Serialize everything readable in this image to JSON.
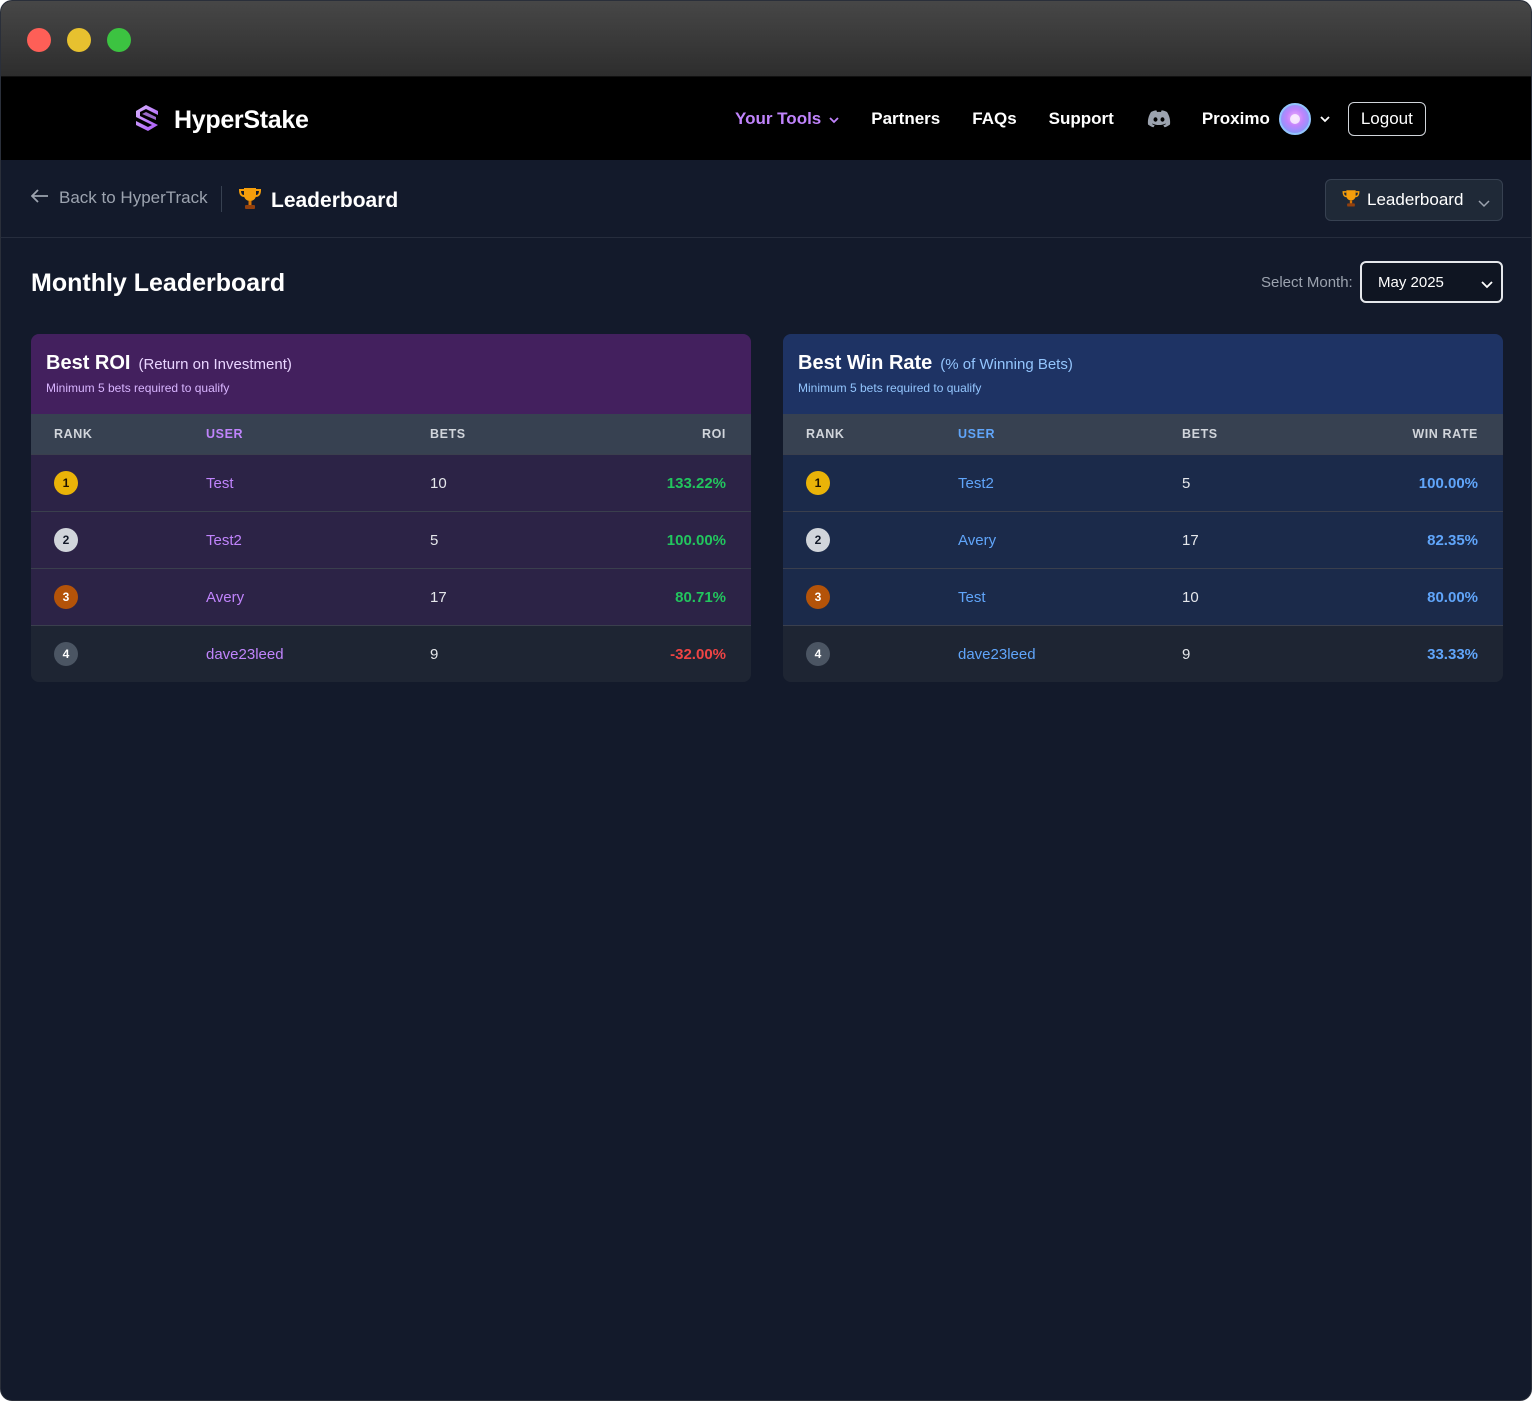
{
  "app": {
    "brand": "HyperStake"
  },
  "nav": {
    "your_tools": "Your Tools",
    "partners": "Partners",
    "faqs": "FAQs",
    "support": "Support",
    "user": "Proximo",
    "logout": "Logout"
  },
  "subheader": {
    "back": "Back to HyperTrack",
    "title": "Leaderboard",
    "dropdown": "Leaderboard"
  },
  "page": {
    "title": "Monthly Leaderboard",
    "month_label": "Select Month:",
    "month_value": "May 2025"
  },
  "columns": {
    "rank": "RANK",
    "user": "USER",
    "bets": "BETS",
    "roi": "ROI",
    "win_rate": "WIN RATE"
  },
  "roi_card": {
    "title": "Best ROI",
    "subtitle": "(Return on Investment)",
    "note": "Minimum 5 bets required to qualify",
    "rows": [
      {
        "rank": "1",
        "user": "Test",
        "bets": "10",
        "value": "133.22%"
      },
      {
        "rank": "2",
        "user": "Test2",
        "bets": "5",
        "value": "100.00%"
      },
      {
        "rank": "3",
        "user": "Avery",
        "bets": "17",
        "value": "80.71%"
      },
      {
        "rank": "4",
        "user": "dave23leed",
        "bets": "9",
        "value": "-32.00%"
      }
    ]
  },
  "win_card": {
    "title": "Best Win Rate",
    "subtitle": "(% of Winning Bets)",
    "note": "Minimum 5 bets required to qualify",
    "rows": [
      {
        "rank": "1",
        "user": "Test2",
        "bets": "5",
        "value": "100.00%"
      },
      {
        "rank": "2",
        "user": "Avery",
        "bets": "17",
        "value": "82.35%"
      },
      {
        "rank": "3",
        "user": "Test",
        "bets": "10",
        "value": "80.00%"
      },
      {
        "rank": "4",
        "user": "dave23leed",
        "bets": "9",
        "value": "33.33%"
      }
    ]
  },
  "colors": {
    "accent_purple": "#c084fc",
    "accent_blue": "#60a5fa",
    "positive": "#22c55e",
    "negative": "#ef4444",
    "gold": "#eab308",
    "silver": "#d1d5db",
    "bronze": "#b45309"
  }
}
